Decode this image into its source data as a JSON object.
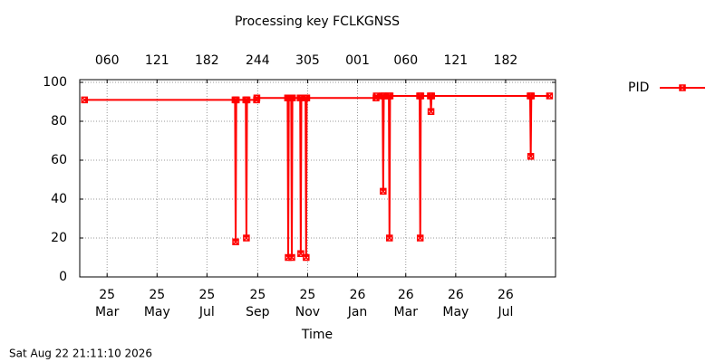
{
  "chart_data": {
    "type": "line",
    "title": "Processing key FCLKGNSS",
    "xlabel": "Time",
    "footer": "Sat Aug 22 21:11:10 2026",
    "xlim": [
      2025.07,
      2026.663
    ],
    "ylim": [
      0,
      101.4
    ],
    "xticks": [
      {
        "value": 2025.1616,
        "label": "25\nMar"
      },
      {
        "value": 2025.3288,
        "label": "25\nMay"
      },
      {
        "value": 2025.4959,
        "label": "25\nJul"
      },
      {
        "value": 2025.6658,
        "label": "25\nSep"
      },
      {
        "value": 2025.8329,
        "label": "25\nNov"
      },
      {
        "value": 2026.0,
        "label": "26\nJan"
      },
      {
        "value": 2026.1616,
        "label": "26\nMar"
      },
      {
        "value": 2026.3288,
        "label": "26\nMay"
      },
      {
        "value": 2026.4959,
        "label": "26\nJul"
      }
    ],
    "x2ticks": [
      {
        "value": 2025.1616,
        "label": "060"
      },
      {
        "value": 2025.3288,
        "label": "121"
      },
      {
        "value": 2025.4959,
        "label": "182"
      },
      {
        "value": 2025.6658,
        "label": "244"
      },
      {
        "value": 2025.8329,
        "label": "305"
      },
      {
        "value": 2026.0,
        "label": "001"
      },
      {
        "value": 2026.1616,
        "label": "060"
      },
      {
        "value": 2026.3288,
        "label": "121"
      },
      {
        "value": 2026.4959,
        "label": "182"
      }
    ],
    "yticks": [
      0,
      20,
      40,
      60,
      80,
      100
    ],
    "grid": true,
    "legend": "outside-right",
    "series": [
      {
        "name": "PID",
        "color": "#ff0000",
        "x": [
          2025.086,
          2025.59,
          2025.592,
          2025.594,
          2025.626,
          2025.628,
          2025.63,
          2025.662,
          2025.663,
          2025.766,
          2025.768,
          2025.77,
          2025.778,
          2025.78,
          2025.782,
          2025.808,
          2025.81,
          2025.812,
          2025.826,
          2025.828,
          2025.83,
          2026.062,
          2026.063,
          2026.084,
          2026.086,
          2026.088,
          2026.105,
          2026.107,
          2026.109,
          2026.208,
          2026.21,
          2026.212,
          2026.244,
          2026.246,
          2026.248,
          2026.578,
          2026.58,
          2026.582,
          2026.643
        ],
        "values": [
          91,
          91,
          18,
          91,
          91,
          20,
          91,
          91,
          92,
          92,
          10,
          92,
          92,
          10,
          92,
          92,
          12,
          92,
          92,
          10,
          92,
          92,
          93,
          93,
          44,
          93,
          93,
          20,
          93,
          93,
          20,
          93,
          93,
          85,
          93,
          93,
          62,
          93,
          93
        ]
      }
    ]
  }
}
